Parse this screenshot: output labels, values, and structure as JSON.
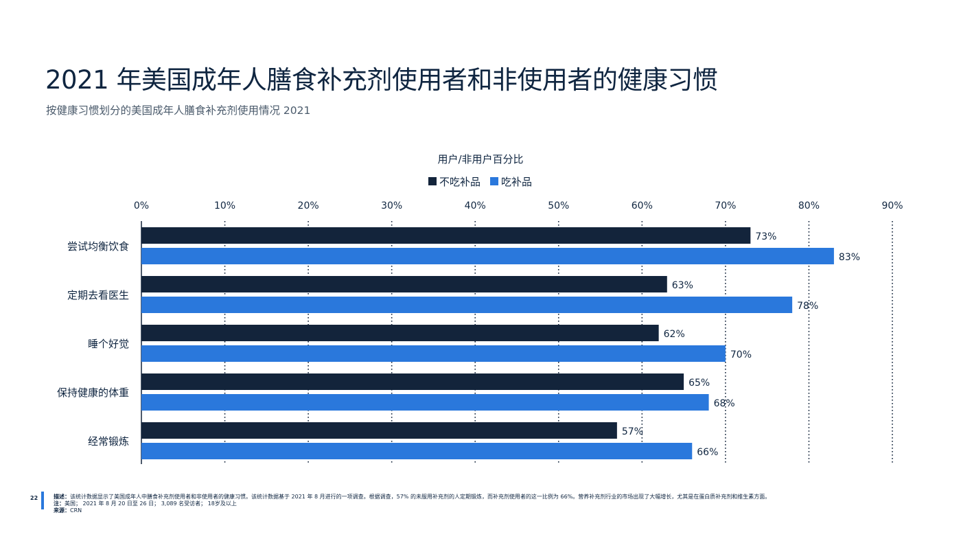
{
  "header": {
    "title_year": "2021",
    "title_text": "年美国成年人膳食补充剂使用者和非使用者的健康习惯",
    "subtitle": "按健康习惯划分的美国成年人膳食补充剂使用情况 2021"
  },
  "chart_data": {
    "type": "bar",
    "orientation": "horizontal",
    "title": "用户/非用户百分比",
    "categories": [
      "尝试均衡饮食",
      "定期去看医生",
      "睡个好觉",
      "保持健康的体重",
      "经常锻炼"
    ],
    "series": [
      {
        "name": "不吃补品",
        "color": "#13243b",
        "values": [
          73,
          63,
          62,
          65,
          57
        ]
      },
      {
        "name": "吃补品",
        "color": "#2a78dc",
        "values": [
          83,
          78,
          70,
          68,
          66
        ]
      }
    ],
    "xticks": [
      "0%",
      "10%",
      "20%",
      "30%",
      "40%",
      "50%",
      "60%",
      "70%",
      "80%",
      "90%"
    ],
    "xlim": [
      0,
      90
    ],
    "value_suffix": "%",
    "grid": "vertical dotted",
    "legend_position": "top-center"
  },
  "footer": {
    "page_number": "22",
    "description_label": "描述：",
    "description": "该统计数据显示了美国成年人中膳食补充剂使用者和非使用者的健康习惯。该统计数据基于 2021 年 8 月进行的一项调查。根据调查，57% 的未服用补充剂的人定期锻炼，而补充剂使用者的这一比例为 66%。营养补充剂行业的市场出现了大幅增长，尤其是在蛋白质补充剂和维生素方面。",
    "note_label": "注：",
    "note": "美国； 2021 年 8 月 20 日至 26 日； 3,089 名受访者； 18岁及以上",
    "source_label": "来源：",
    "source": "CRN"
  }
}
